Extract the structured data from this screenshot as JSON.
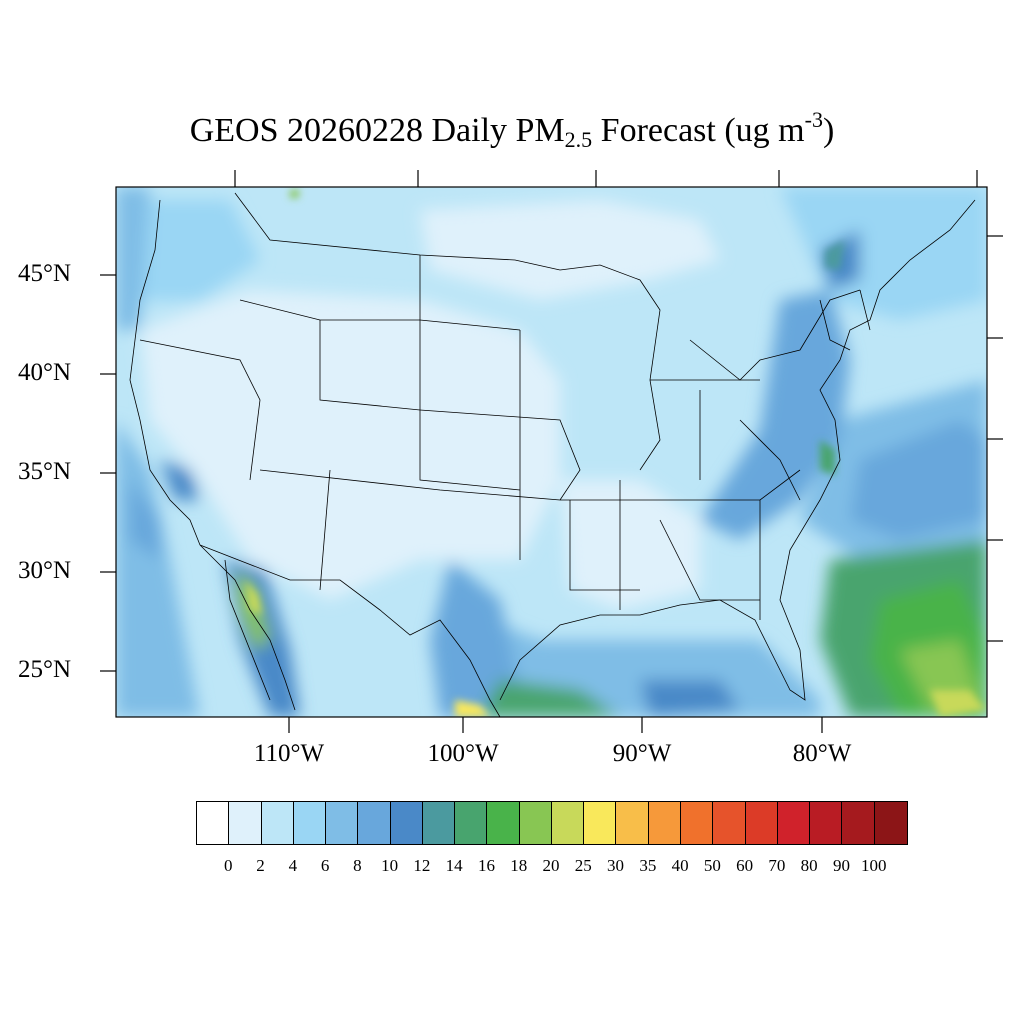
{
  "map": {
    "title_main": "GEOS 20260228 Daily PM",
    "title_sub": "2.5",
    "title_rest": " Forecast (ug m",
    "title_sup": "-3",
    "title_end": ")",
    "lat_labels": [
      "45°N",
      "40°N",
      "35°N",
      "30°N",
      "25°N"
    ],
    "lon_labels": [
      "110°W",
      "100°W",
      "90°W",
      "80°W"
    ],
    "region": "Contiguous United States"
  },
  "colorbar": {
    "ticks": [
      "0",
      "2",
      "4",
      "6",
      "8",
      "10",
      "12",
      "14",
      "16",
      "18",
      "20",
      "25",
      "30",
      "35",
      "40",
      "50",
      "60",
      "70",
      "80",
      "90",
      "100"
    ],
    "colors": [
      "#ffffff",
      "#dff1fb",
      "#bde6f7",
      "#9ad6f4",
      "#7fbde6",
      "#68a7dc",
      "#4a89c8",
      "#4b9a9f",
      "#48a46e",
      "#49b34a",
      "#88c653",
      "#c8d95a",
      "#f9e85b",
      "#f8be49",
      "#f6993a",
      "#f0712c",
      "#e6532b",
      "#dc3b27",
      "#d0222b",
      "#b91c24",
      "#a51a1e",
      "#8c1517"
    ]
  }
}
